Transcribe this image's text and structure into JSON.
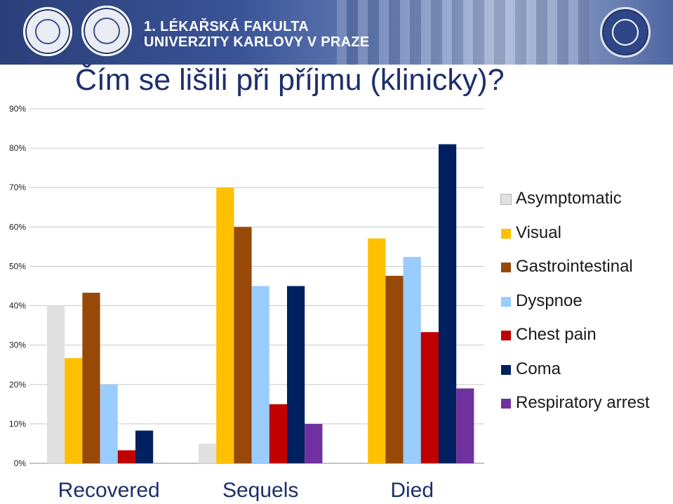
{
  "header": {
    "faculty_line1": "1. LÉKAŘSKÁ FAKULTA",
    "faculty_line2": "UNIVERZITY KARLOVY V PRAZE"
  },
  "slide": {
    "title": "Čím se lišili při příjmu (klinicky)?"
  },
  "chart_data": {
    "type": "bar",
    "categories": [
      "Recovered",
      "Sequels",
      "Died"
    ],
    "ylim": [
      0,
      90
    ],
    "yticks": [
      "0%",
      "10%",
      "20%",
      "30%",
      "40%",
      "50%",
      "60%",
      "70%",
      "80%",
      "90%"
    ],
    "grid": true,
    "legend": "right",
    "series": [
      {
        "name": "Asymptomatic",
        "color": "#e0e0e0",
        "values": [
          40,
          5,
          0
        ]
      },
      {
        "name": "Visual",
        "color": "#ffc000",
        "values": [
          26.7,
          70,
          57.1
        ]
      },
      {
        "name": "Gastrointestinal",
        "color": "#984807",
        "values": [
          43.3,
          60,
          47.6
        ]
      },
      {
        "name": "Dyspnoe",
        "color": "#99ccff",
        "values": [
          20,
          45,
          52.4
        ]
      },
      {
        "name": "Chest pain",
        "color": "#c00000",
        "values": [
          3.3,
          15,
          33.3
        ]
      },
      {
        "name": "Coma",
        "color": "#002060",
        "values": [
          8.3,
          45,
          81
        ]
      },
      {
        "name": "Respiratory arrest",
        "color": "#7030a0",
        "values": [
          0,
          10,
          19
        ]
      }
    ]
  }
}
